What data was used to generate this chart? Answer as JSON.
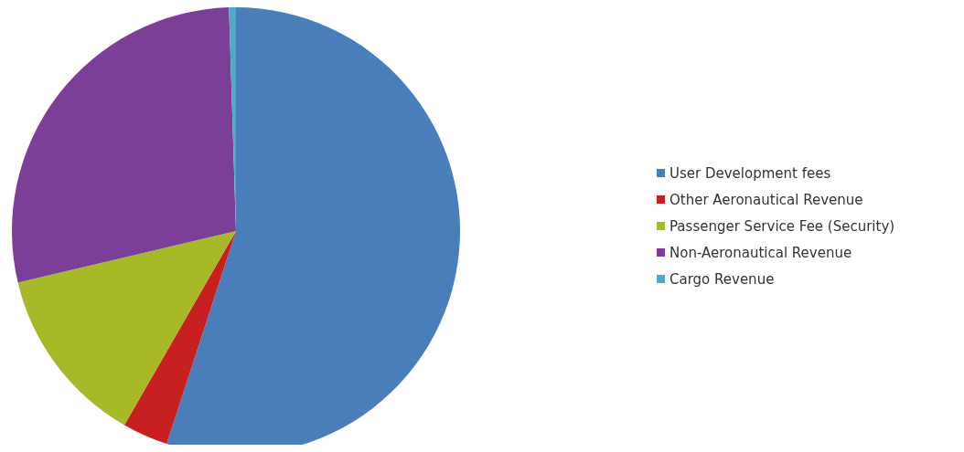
{
  "chart_data": {
    "type": "pie",
    "categories": [
      "User Development fees",
      "Other Aeronautical Revenue",
      "Passenger Service Fee (Security)",
      "Non-Aeronautical Revenue",
      "Cargo Revenue"
    ],
    "values": [
      55,
      3.3,
      13,
      28.2,
      0.5
    ],
    "colors": [
      "#4a7ebb",
      "#c82020",
      "#a8b928",
      "#7b3f97",
      "#4bacc6"
    ],
    "legend": "right"
  }
}
